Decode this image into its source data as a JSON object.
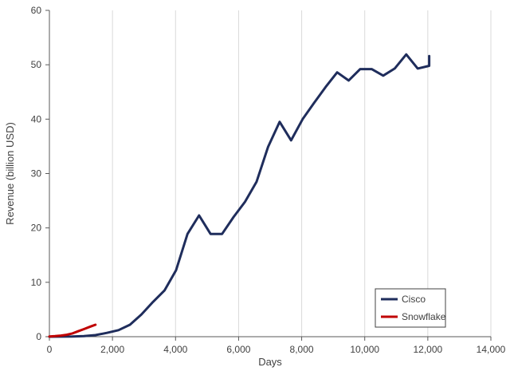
{
  "chart_data": {
    "type": "line",
    "title": "",
    "xlabel": "Days",
    "ylabel": "Revenue (billion USD)",
    "xlim": [
      0,
      14000
    ],
    "ylim": [
      0,
      60
    ],
    "x_ticks": [
      0,
      2000,
      4000,
      6000,
      8000,
      10000,
      12000,
      14000
    ],
    "x_tick_labels": [
      "0",
      "2,000",
      "4,000",
      "6,000",
      "8,000",
      "10,000",
      "12,000",
      "14,000"
    ],
    "y_ticks": [
      0,
      10,
      20,
      30,
      40,
      50,
      60
    ],
    "y_tick_labels": [
      "0",
      "10",
      "20",
      "30",
      "40",
      "50",
      "60"
    ],
    "grid": {
      "vertical": true,
      "horizontal": false
    },
    "legend_position": "bottom-right",
    "series": [
      {
        "name": "Cisco",
        "color": "#1f2d5c",
        "points": [
          [
            0,
            0
          ],
          [
            365,
            0.01
          ],
          [
            730,
            0.03
          ],
          [
            1095,
            0.1
          ],
          [
            1460,
            0.3
          ],
          [
            1825,
            0.7
          ],
          [
            2190,
            1.2
          ],
          [
            2555,
            2.2
          ],
          [
            2920,
            4.1
          ],
          [
            3285,
            6.4
          ],
          [
            3650,
            8.5
          ],
          [
            4015,
            12.2
          ],
          [
            4380,
            18.9
          ],
          [
            4745,
            22.3
          ],
          [
            5110,
            18.9
          ],
          [
            5475,
            18.9
          ],
          [
            5840,
            22.0
          ],
          [
            6205,
            24.8
          ],
          [
            6570,
            28.5
          ],
          [
            6935,
            34.9
          ],
          [
            7300,
            39.5
          ],
          [
            7665,
            36.1
          ],
          [
            8030,
            40.0
          ],
          [
            8395,
            43.0
          ],
          [
            8760,
            45.9
          ],
          [
            9125,
            48.6
          ],
          [
            9490,
            47.1
          ],
          [
            9855,
            49.2
          ],
          [
            10220,
            49.2
          ],
          [
            10585,
            48.0
          ],
          [
            10950,
            49.3
          ],
          [
            11315,
            51.9
          ],
          [
            11680,
            49.3
          ],
          [
            12045,
            49.8
          ],
          [
            12045,
            51.6
          ]
        ]
      },
      {
        "name": "Snowflake",
        "color": "#c00000",
        "points": [
          [
            0,
            0.05
          ],
          [
            180,
            0.1
          ],
          [
            365,
            0.2
          ],
          [
            545,
            0.35
          ],
          [
            730,
            0.6
          ],
          [
            910,
            1.0
          ],
          [
            1095,
            1.4
          ],
          [
            1275,
            1.8
          ],
          [
            1460,
            2.2
          ]
        ]
      }
    ]
  }
}
